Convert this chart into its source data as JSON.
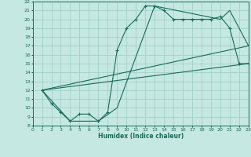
{
  "xlabel": "Humidex (Indice chaleur)",
  "xlim": [
    0,
    23
  ],
  "ylim": [
    8,
    22
  ],
  "xticks": [
    0,
    1,
    2,
    3,
    4,
    5,
    6,
    7,
    8,
    9,
    10,
    11,
    12,
    13,
    14,
    15,
    16,
    17,
    18,
    19,
    20,
    21,
    22,
    23
  ],
  "yticks": [
    8,
    9,
    10,
    11,
    12,
    13,
    14,
    15,
    16,
    17,
    18,
    19,
    20,
    21,
    22
  ],
  "bg_color": "#c5e8e2",
  "grid_color": "#9dccc4",
  "line_color": "#1a6b5a",
  "series1_x": [
    1,
    2,
    3,
    4,
    5,
    6,
    7,
    8,
    9,
    10,
    11,
    12,
    13,
    14,
    15,
    16,
    17,
    18,
    19,
    20,
    21,
    22,
    23
  ],
  "series1_y": [
    12,
    10.5,
    9.5,
    8.5,
    9.3,
    9.3,
    8.5,
    9.5,
    16.5,
    19,
    20,
    21.5,
    21.5,
    21,
    20,
    20,
    20,
    20,
    20,
    20.3,
    19,
    15,
    15
  ],
  "series2_x": [
    1,
    23
  ],
  "series2_y": [
    12,
    15
  ],
  "series3_x": [
    1,
    4,
    7,
    9,
    13,
    20,
    21,
    22,
    23,
    1
  ],
  "series3_y": [
    12,
    8.5,
    8.5,
    10,
    21.5,
    20,
    21,
    19,
    17,
    12
  ]
}
